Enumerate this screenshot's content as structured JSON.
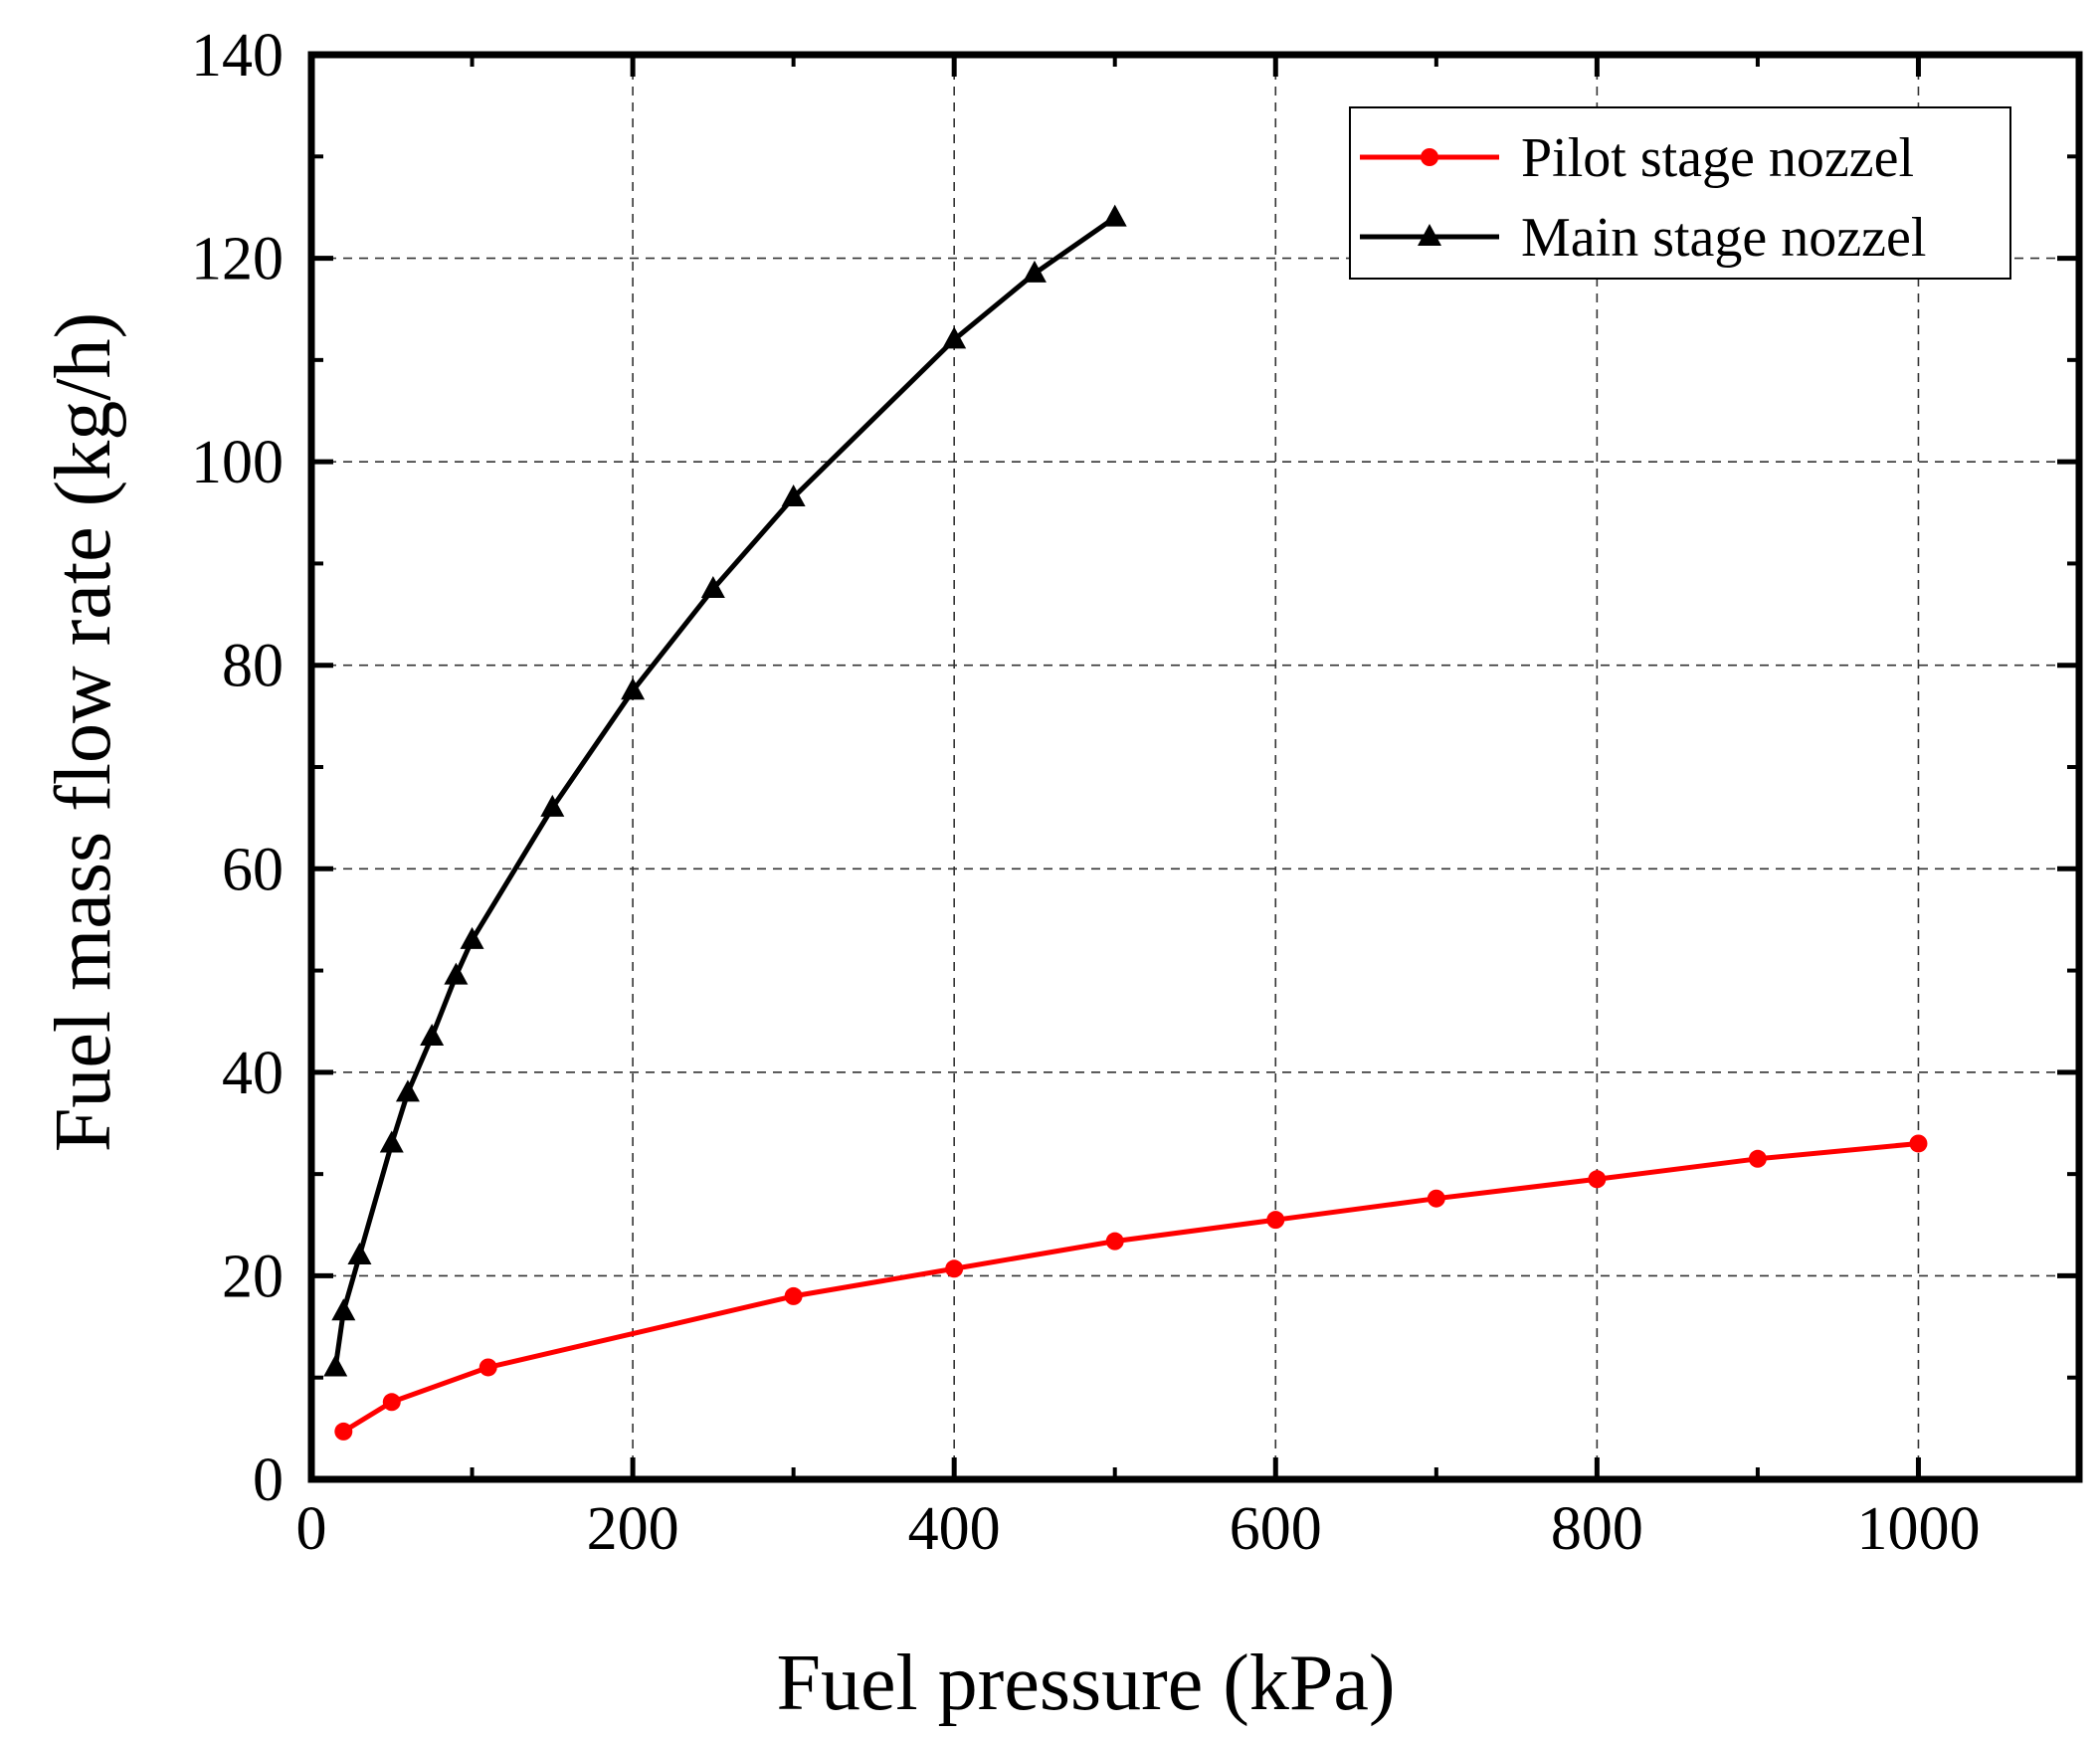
{
  "chart_data": {
    "type": "line",
    "title": "",
    "xlabel": "Fuel pressure (kPa)",
    "ylabel": "Fuel mass flow rate (kg/h)",
    "xlim": [
      0,
      1100
    ],
    "ylim": [
      0,
      140
    ],
    "xticks": [
      0,
      200,
      400,
      600,
      800,
      1000
    ],
    "yticks": [
      0,
      20,
      40,
      60,
      80,
      100,
      120,
      140
    ],
    "x_tick_labels": [
      "0",
      "200",
      "400",
      "600",
      "800",
      "1000"
    ],
    "y_tick_labels": [
      "0",
      "20",
      "40",
      "60",
      "80",
      "100",
      "120",
      "140"
    ],
    "grid": true,
    "legend_position": "top-right",
    "series": [
      {
        "name": "Pilot stage nozzel",
        "color": "#ff0000",
        "marker": "circle",
        "x": [
          20,
          50,
          110,
          300,
          400,
          500,
          600,
          700,
          800,
          900,
          1000
        ],
        "y": [
          4.7,
          7.6,
          11.0,
          18.0,
          20.7,
          23.4,
          25.5,
          27.6,
          29.5,
          31.5,
          33.0
        ]
      },
      {
        "name": "Main stage nozzel",
        "color": "#000000",
        "marker": "triangle",
        "x": [
          15,
          20,
          30,
          50,
          60,
          75,
          90,
          100,
          150,
          200,
          250,
          300,
          400,
          450,
          500
        ],
        "y": [
          11.0,
          16.5,
          22.0,
          33.0,
          38.0,
          43.5,
          49.5,
          53.0,
          66.0,
          77.5,
          87.5,
          96.5,
          112.0,
          118.5,
          124.0
        ]
      }
    ]
  }
}
